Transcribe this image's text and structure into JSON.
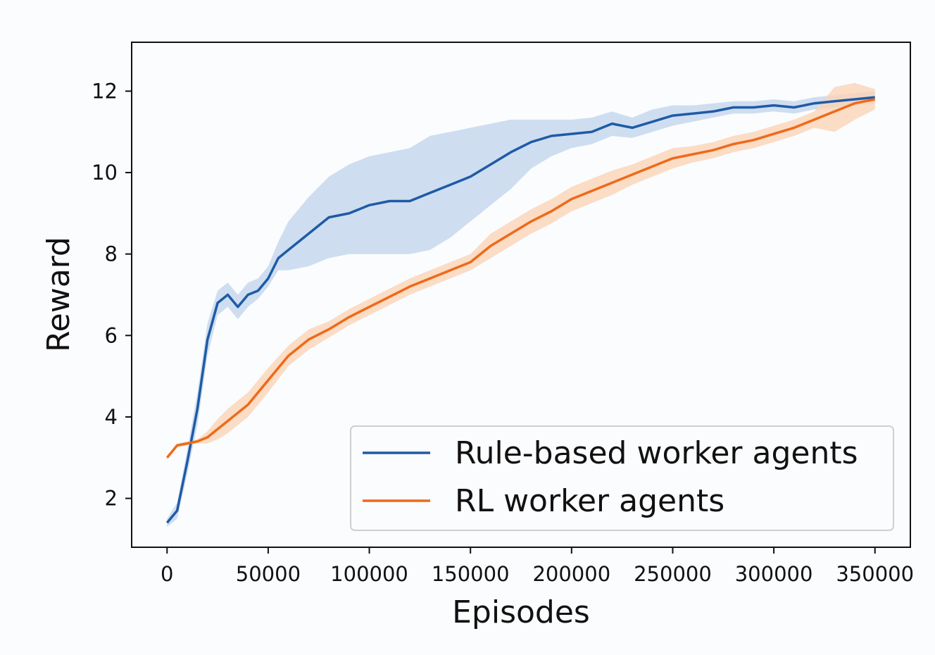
{
  "chart_data": {
    "type": "line",
    "title": "",
    "xlabel": "Episodes",
    "ylabel": "Reward",
    "xlim": [
      -17500,
      367500
    ],
    "ylim": [
      0.8,
      13.2
    ],
    "xticks": [
      0,
      50000,
      100000,
      150000,
      200000,
      250000,
      300000,
      350000
    ],
    "xtick_labels": [
      "0",
      "50000",
      "100000",
      "150000",
      "200000",
      "250000",
      "300000",
      "350000"
    ],
    "yticks": [
      2,
      4,
      6,
      8,
      10,
      12
    ],
    "ytick_labels": [
      "2",
      "4",
      "6",
      "8",
      "10",
      "12"
    ],
    "grid": false,
    "legend_position": "lower right",
    "series": [
      {
        "name": "Rule-based worker agents",
        "color": "#1f5aa6",
        "band_color": "#c3d6ec",
        "x": [
          0,
          5000,
          10000,
          15000,
          20000,
          25000,
          30000,
          35000,
          40000,
          45000,
          50000,
          55000,
          60000,
          70000,
          80000,
          90000,
          100000,
          110000,
          120000,
          130000,
          140000,
          150000,
          160000,
          170000,
          180000,
          190000,
          200000,
          210000,
          220000,
          230000,
          240000,
          250000,
          260000,
          270000,
          280000,
          290000,
          300000,
          310000,
          320000,
          330000,
          340000,
          350000
        ],
        "y": [
          1.4,
          1.7,
          2.9,
          4.2,
          5.9,
          6.8,
          7.0,
          6.7,
          7.0,
          7.1,
          7.4,
          7.9,
          8.1,
          8.5,
          8.9,
          9.0,
          9.2,
          9.3,
          9.3,
          9.5,
          9.7,
          9.9,
          10.2,
          10.5,
          10.75,
          10.9,
          10.95,
          11.0,
          11.2,
          11.1,
          11.25,
          11.4,
          11.45,
          11.5,
          11.6,
          11.6,
          11.65,
          11.6,
          11.7,
          11.75,
          11.8,
          11.85
        ],
        "lower": [
          1.3,
          1.5,
          2.6,
          3.8,
          5.5,
          6.5,
          6.7,
          6.4,
          6.7,
          6.9,
          7.2,
          7.6,
          7.6,
          7.7,
          7.9,
          8.0,
          8.0,
          8.0,
          8.0,
          8.1,
          8.4,
          8.8,
          9.2,
          9.6,
          10.1,
          10.4,
          10.6,
          10.7,
          10.9,
          10.85,
          11.0,
          11.15,
          11.25,
          11.35,
          11.45,
          11.45,
          11.5,
          11.45,
          11.55,
          11.6,
          11.65,
          11.7
        ],
        "upper": [
          1.5,
          1.9,
          3.2,
          4.6,
          6.3,
          7.1,
          7.3,
          7.0,
          7.3,
          7.4,
          7.7,
          8.3,
          8.8,
          9.4,
          9.9,
          10.2,
          10.4,
          10.5,
          10.6,
          10.9,
          11.0,
          11.1,
          11.2,
          11.3,
          11.3,
          11.3,
          11.3,
          11.35,
          11.5,
          11.35,
          11.55,
          11.65,
          11.65,
          11.7,
          11.75,
          11.75,
          11.8,
          11.75,
          11.85,
          11.9,
          11.95,
          12.0
        ]
      },
      {
        "name": "RL worker agents",
        "color": "#ee6a1a",
        "band_color": "#fbd3b6",
        "x": [
          0,
          5000,
          10000,
          15000,
          20000,
          25000,
          30000,
          35000,
          40000,
          45000,
          50000,
          60000,
          70000,
          80000,
          90000,
          100000,
          110000,
          120000,
          130000,
          140000,
          150000,
          160000,
          170000,
          180000,
          190000,
          200000,
          210000,
          220000,
          230000,
          240000,
          250000,
          260000,
          270000,
          280000,
          290000,
          300000,
          310000,
          320000,
          330000,
          340000,
          350000
        ],
        "y": [
          3.0,
          3.3,
          3.35,
          3.4,
          3.5,
          3.7,
          3.9,
          4.1,
          4.3,
          4.6,
          4.9,
          5.5,
          5.9,
          6.15,
          6.45,
          6.7,
          6.95,
          7.2,
          7.4,
          7.6,
          7.8,
          8.2,
          8.5,
          8.8,
          9.05,
          9.35,
          9.55,
          9.75,
          9.95,
          10.15,
          10.35,
          10.45,
          10.55,
          10.7,
          10.8,
          10.95,
          11.1,
          11.3,
          11.5,
          11.7,
          11.8
        ],
        "lower": [
          2.95,
          3.25,
          3.3,
          3.35,
          3.35,
          3.45,
          3.6,
          3.8,
          4.0,
          4.3,
          4.6,
          5.25,
          5.65,
          5.95,
          6.25,
          6.5,
          6.75,
          7.0,
          7.2,
          7.4,
          7.6,
          7.9,
          8.2,
          8.5,
          8.75,
          9.05,
          9.25,
          9.45,
          9.7,
          9.9,
          10.1,
          10.25,
          10.35,
          10.5,
          10.6,
          10.75,
          10.9,
          11.1,
          11.0,
          11.3,
          11.55
        ],
        "upper": [
          3.05,
          3.35,
          3.4,
          3.45,
          3.65,
          3.95,
          4.2,
          4.4,
          4.6,
          4.9,
          5.2,
          5.75,
          6.15,
          6.35,
          6.65,
          6.9,
          7.15,
          7.4,
          7.6,
          7.8,
          8.0,
          8.5,
          8.8,
          9.1,
          9.35,
          9.65,
          9.85,
          10.05,
          10.2,
          10.4,
          10.6,
          10.65,
          10.75,
          10.9,
          11.0,
          11.15,
          11.3,
          11.5,
          12.1,
          12.2,
          12.05
        ]
      }
    ]
  }
}
